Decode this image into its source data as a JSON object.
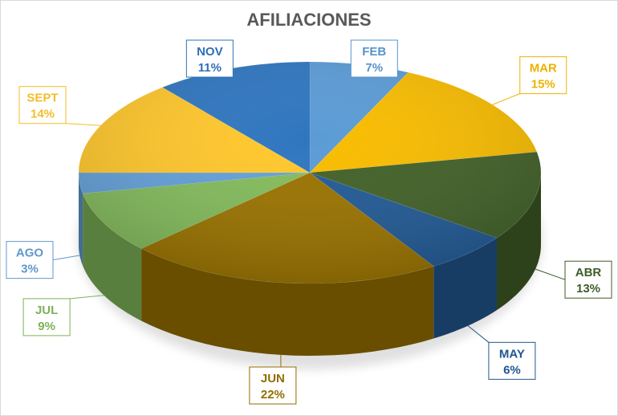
{
  "chart_data": {
    "type": "pie",
    "title": "AFILIACIONES",
    "slices": [
      {
        "label": "FEB",
        "value": 7,
        "display": "7%",
        "color": "#5b9bd5"
      },
      {
        "label": "MAR",
        "value": 15,
        "display": "15%",
        "color": "#f8bc00"
      },
      {
        "label": "ABR",
        "value": 13,
        "display": "13%",
        "color": "#426128"
      },
      {
        "label": "MAY",
        "value": 6,
        "display": "6%",
        "color": "#225a95"
      },
      {
        "label": "JUN",
        "value": 22,
        "display": "22%",
        "color": "#9a7300"
      },
      {
        "label": "JUL",
        "value": 9,
        "display": "9%",
        "color": "#83bb5c"
      },
      {
        "label": "AGO",
        "value": 3,
        "display": "3%",
        "color": "#64a0d8"
      },
      {
        "label": "SEPT",
        "value": 14,
        "display": "14%",
        "color": "#ffc72c"
      },
      {
        "label": "NOV",
        "value": 11,
        "display": "11%",
        "color": "#2f76bf"
      }
    ]
  }
}
